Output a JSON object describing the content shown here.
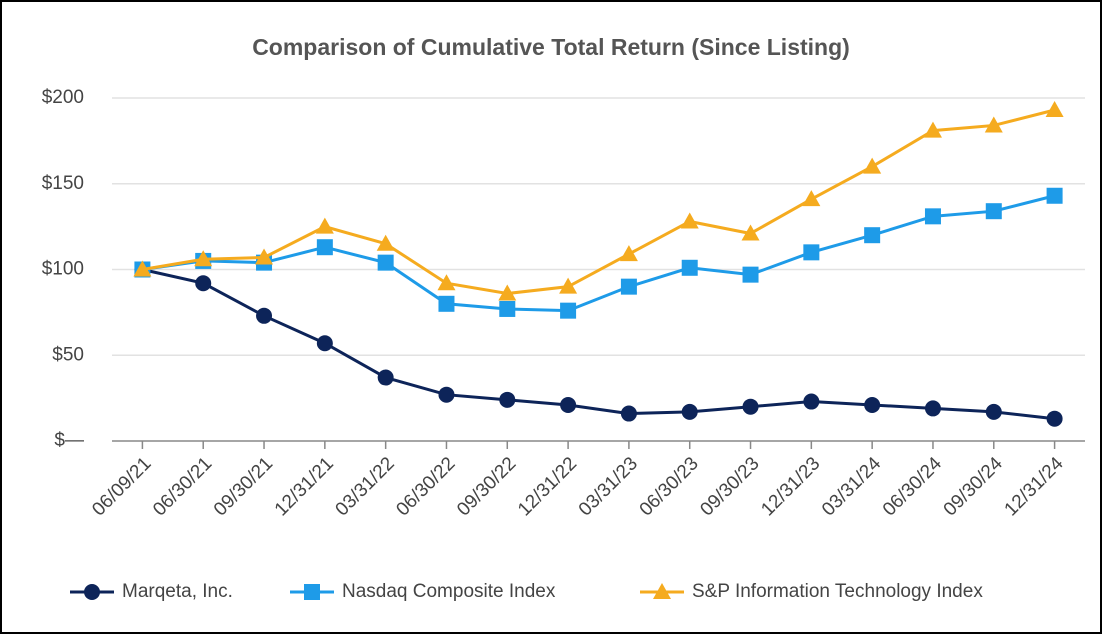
{
  "chart_data": {
    "type": "line",
    "title": "Comparison of Cumulative Total Return (Since Listing)",
    "categories": [
      "06/09/21",
      "06/30/21",
      "09/30/21",
      "12/31/21",
      "03/31/22",
      "06/30/22",
      "09/30/22",
      "12/31/22",
      "03/31/23",
      "06/30/23",
      "09/30/23",
      "12/31/23",
      "03/31/24",
      "06/30/24",
      "09/30/24",
      "12/31/24"
    ],
    "series": [
      {
        "name": "Marqeta, Inc.",
        "color": "#0d2459",
        "marker": "circle",
        "values": [
          100,
          92,
          73,
          57,
          37,
          27,
          24,
          21,
          16,
          17,
          20,
          23,
          21,
          19,
          17,
          13
        ]
      },
      {
        "name": "Nasdaq Composite Index",
        "color": "#1e9be8",
        "marker": "square",
        "values": [
          100,
          105,
          104,
          113,
          104,
          80,
          77,
          76,
          90,
          101,
          97,
          110,
          120,
          131,
          134,
          143
        ]
      },
      {
        "name": "S&P Information Technology Index",
        "color": "#f5ab1f",
        "marker": "triangle",
        "values": [
          100,
          106,
          107,
          125,
          115,
          92,
          86,
          90,
          109,
          128,
          121,
          141,
          160,
          181,
          184,
          193
        ]
      }
    ],
    "ylim": [
      0,
      200
    ],
    "yticks": [
      {
        "value": 0,
        "label": "$—"
      },
      {
        "value": 50,
        "label": "$50"
      },
      {
        "value": 100,
        "label": "$100"
      },
      {
        "value": 150,
        "label": "$150"
      },
      {
        "value": 200,
        "label": "$200"
      }
    ],
    "grid": true,
    "legend": "bottom"
  }
}
